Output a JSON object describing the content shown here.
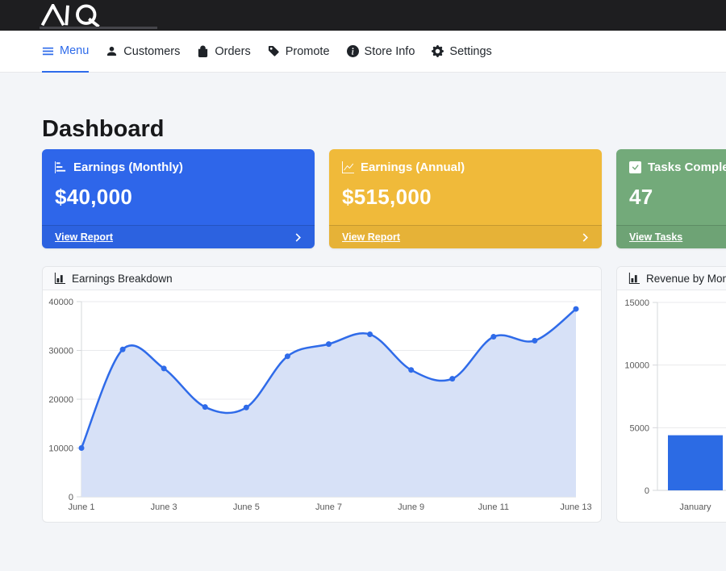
{
  "brand": {
    "monogram": "AQ"
  },
  "nav": {
    "items": [
      {
        "label": "Menu",
        "icon": "hamburger-icon",
        "active": true
      },
      {
        "label": "Customers",
        "icon": "person-icon",
        "active": false
      },
      {
        "label": "Orders",
        "icon": "bag-icon",
        "active": false
      },
      {
        "label": "Promote",
        "icon": "tag-icon",
        "active": false
      },
      {
        "label": "Store Info",
        "icon": "info-icon",
        "active": false
      },
      {
        "label": "Settings",
        "icon": "gear-icon",
        "active": false
      }
    ],
    "active_color": "#2e6bea"
  },
  "page": {
    "title": "Dashboard"
  },
  "stat_cards": [
    {
      "title": "Earnings (Monthly)",
      "value": "$40,000",
      "link": "View Report",
      "color": "#2e66ea",
      "icon": "bar-chart-steps-icon"
    },
    {
      "title": "Earnings (Annual)",
      "value": "$515,000",
      "link": "View Report",
      "color": "#f0ba3a",
      "icon": "line-graph-icon"
    },
    {
      "title": "Tasks Completed",
      "value": "47",
      "link": "View Tasks",
      "color": "#73aa7a",
      "icon": "check-square-icon"
    }
  ],
  "chart_data": [
    {
      "type": "area",
      "title": "Earnings Breakdown",
      "categories": [
        "June 1",
        "June 2",
        "June 3",
        "June 4",
        "June 5",
        "June 6",
        "June 7",
        "June 8",
        "June 9",
        "June 10",
        "June 11",
        "June 12",
        "June 13"
      ],
      "values": [
        10000,
        30200,
        26300,
        18400,
        18300,
        28800,
        31300,
        33300,
        26000,
        24200,
        32800,
        32000,
        38500
      ],
      "xtick_labels_shown": [
        "June 1",
        "June 3",
        "June 5",
        "June 7",
        "June 9",
        "June 11",
        "June 13"
      ],
      "ylim": [
        0,
        40000
      ],
      "yticks": [
        0,
        10000,
        20000,
        30000,
        40000
      ],
      "line_color": "#2f6be9",
      "fill_color": "#d7e1f7",
      "point_color": "#2f6be9",
      "grid": true,
      "legend": false
    },
    {
      "type": "bar",
      "title": "Revenue by Month",
      "categories": [
        "January"
      ],
      "values": [
        4400
      ],
      "ylim": [
        0,
        15000
      ],
      "yticks": [
        0,
        5000,
        10000,
        15000
      ],
      "bar_color": "#2c6be4",
      "grid": true,
      "legend": false
    }
  ]
}
